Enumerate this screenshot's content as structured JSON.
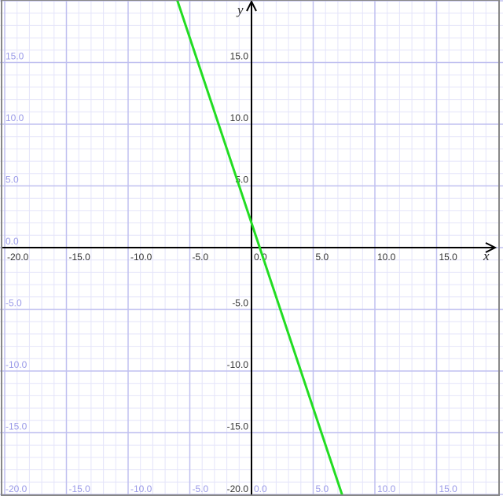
{
  "chart_data": {
    "type": "line",
    "title": "",
    "xlabel": "x",
    "ylabel": "y",
    "xlim": [
      -20.3,
      19.9
    ],
    "ylim": [
      -20.3,
      20.1
    ],
    "grid": true,
    "minor_grid_step": 1,
    "major_grid_step": 5,
    "x_ticks": [
      "-20.0",
      "-15.0",
      "-10.0",
      "-5.0",
      "0.0",
      "5.0",
      "10.0",
      "15.0"
    ],
    "y_ticks": [
      "15.0",
      "10.0",
      "5.0",
      "0.0",
      "-5.0",
      "-10.0",
      "-15.0",
      "-20.0"
    ],
    "series": [
      {
        "equation_slope": -3,
        "equation_intercept": 2,
        "x": [
          -6.1,
          7.4
        ],
        "y": [
          20.3,
          -20.2
        ],
        "color": "#22dd22"
      }
    ],
    "colors": {
      "major_grid": "#c0c0f0",
      "minor_grid": "#e4e4fa",
      "edge_labels": "#9a9ae8",
      "axis": "#000000",
      "axis_labels": "#333333",
      "border": "#888888"
    }
  }
}
